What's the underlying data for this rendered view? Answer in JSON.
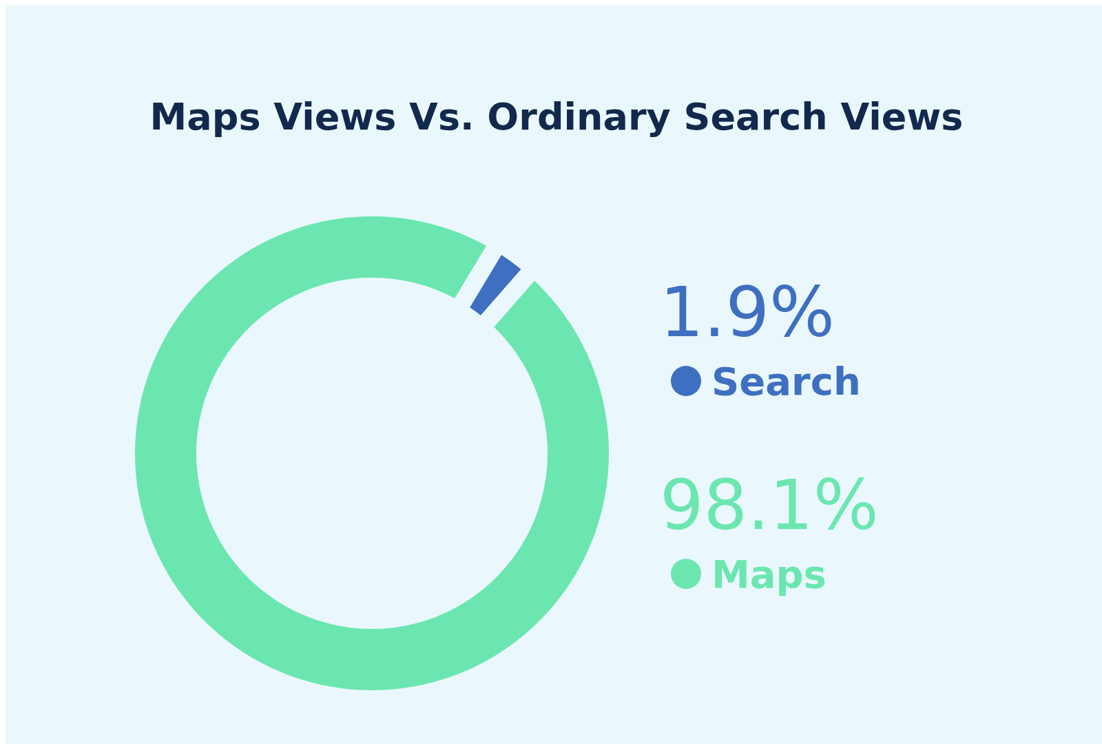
{
  "chart_data": {
    "type": "donut",
    "title": "Maps Views Vs. Ordinary Search Views",
    "categories": [
      "Search",
      "Maps"
    ],
    "values": [
      1.9,
      98.1
    ],
    "colors": [
      "#3f6fc0",
      "#6ce6b0"
    ],
    "value_labels": [
      "1.9%",
      "98.1%"
    ],
    "legend": "right"
  }
}
